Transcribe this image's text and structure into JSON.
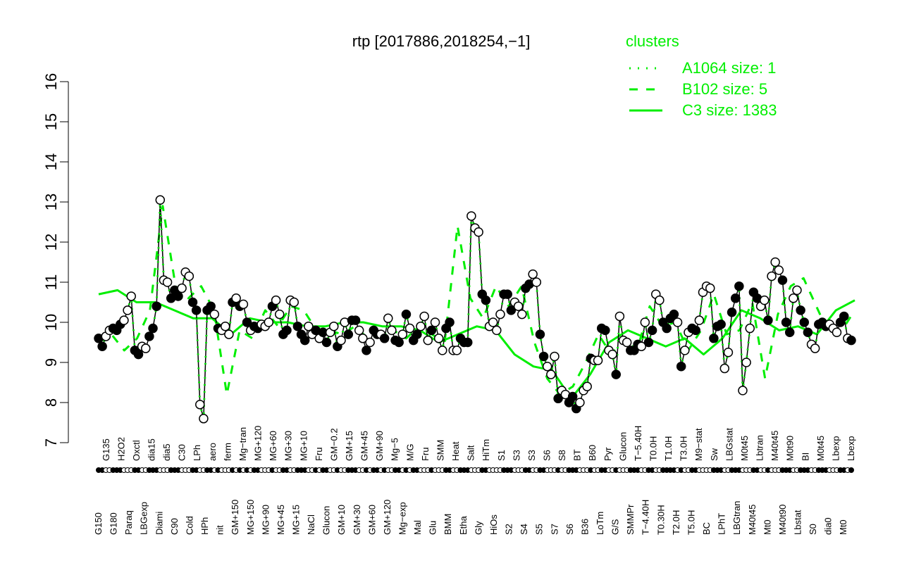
{
  "chart_data": {
    "type": "line",
    "title": "rtp [2017886,2018254,−1]",
    "xlabel": "",
    "ylabel": "",
    "ylim": [
      7,
      16
    ],
    "yticks": [
      "7",
      "8",
      "9",
      "10",
      "11",
      "12",
      "13",
      "14",
      "15",
      "16"
    ],
    "grid": false,
    "legend": {
      "title": "clusters",
      "placement": "top-right",
      "entries": [
        {
          "label": "A1064 size: 1",
          "style": "dotted"
        },
        {
          "label": "B102 size: 5",
          "style": "dashed"
        },
        {
          "label": "C3 size: 1383",
          "style": "solid"
        }
      ]
    },
    "colors": {
      "cluster_lines": "#00ee00",
      "points": "#000000",
      "title": "#000000"
    },
    "point_note_filled": "1 = filled circle, 0 = open circle",
    "points": [
      [
        9.6,
        1
      ],
      [
        9.4,
        1
      ],
      [
        9.65,
        0
      ],
      [
        9.8,
        0
      ],
      [
        9.85,
        1
      ],
      [
        9.8,
        1
      ],
      [
        9.95,
        1
      ],
      [
        10.05,
        0
      ],
      [
        10.3,
        0
      ],
      [
        10.65,
        0
      ],
      [
        9.3,
        1
      ],
      [
        9.2,
        1
      ],
      [
        9.4,
        0
      ],
      [
        9.35,
        0
      ],
      [
        9.65,
        1
      ],
      [
        9.85,
        1
      ],
      [
        10.4,
        1
      ],
      [
        13.05,
        0
      ],
      [
        11.05,
        0
      ],
      [
        11.0,
        0
      ],
      [
        10.6,
        1
      ],
      [
        10.8,
        1
      ],
      [
        10.65,
        1
      ],
      [
        10.85,
        0
      ],
      [
        11.25,
        0
      ],
      [
        11.15,
        0
      ],
      [
        10.5,
        1
      ],
      [
        10.3,
        1
      ],
      [
        7.95,
        0
      ],
      [
        7.6,
        0
      ],
      [
        10.3,
        1
      ],
      [
        10.4,
        1
      ],
      [
        10.2,
        0
      ],
      [
        9.85,
        1
      ],
      [
        9.8,
        0
      ],
      [
        9.9,
        0
      ],
      [
        9.7,
        0
      ],
      [
        10.5,
        1
      ],
      [
        10.6,
        0
      ],
      [
        10.4,
        1
      ],
      [
        10.45,
        0
      ],
      [
        10.0,
        1
      ],
      [
        9.8,
        0
      ],
      [
        9.9,
        1
      ],
      [
        9.85,
        1
      ],
      [
        9.95,
        0
      ],
      [
        9.9,
        0
      ],
      [
        10.0,
        0
      ],
      [
        10.4,
        1
      ],
      [
        10.55,
        0
      ],
      [
        10.2,
        0
      ],
      [
        9.7,
        1
      ],
      [
        9.8,
        1
      ],
      [
        10.55,
        0
      ],
      [
        10.5,
        0
      ],
      [
        9.9,
        1
      ],
      [
        9.7,
        1
      ],
      [
        9.55,
        1
      ],
      [
        9.9,
        0
      ],
      [
        9.7,
        0
      ],
      [
        9.8,
        1
      ],
      [
        9.6,
        0
      ],
      [
        9.75,
        1
      ],
      [
        9.5,
        1
      ],
      [
        9.75,
        0
      ],
      [
        9.9,
        0
      ],
      [
        9.4,
        1
      ],
      [
        9.55,
        0
      ],
      [
        10.0,
        0
      ],
      [
        9.7,
        1
      ],
      [
        10.05,
        1
      ],
      [
        10.05,
        1
      ],
      [
        9.8,
        0
      ],
      [
        9.6,
        0
      ],
      [
        9.3,
        1
      ],
      [
        9.5,
        0
      ],
      [
        9.8,
        1
      ],
      [
        9.7,
        1
      ],
      [
        9.7,
        0
      ],
      [
        9.6,
        1
      ],
      [
        10.1,
        0
      ],
      [
        9.8,
        0
      ],
      [
        9.55,
        1
      ],
      [
        9.5,
        1
      ],
      [
        9.7,
        0
      ],
      [
        10.2,
        1
      ],
      [
        9.85,
        0
      ],
      [
        9.55,
        1
      ],
      [
        9.7,
        1
      ],
      [
        9.9,
        0
      ],
      [
        10.15,
        0
      ],
      [
        9.55,
        0
      ],
      [
        9.8,
        1
      ],
      [
        10.0,
        0
      ],
      [
        9.6,
        0
      ],
      [
        9.3,
        0
      ],
      [
        9.85,
        1
      ],
      [
        10.0,
        1
      ],
      [
        9.3,
        0
      ],
      [
        9.3,
        0
      ],
      [
        9.6,
        1
      ],
      [
        9.5,
        1
      ],
      [
        9.5,
        1
      ],
      [
        12.65,
        0
      ],
      [
        12.35,
        0
      ],
      [
        12.25,
        0
      ],
      [
        10.7,
        1
      ],
      [
        10.55,
        1
      ],
      [
        9.9,
        0
      ],
      [
        10.0,
        0
      ],
      [
        9.8,
        0
      ],
      [
        10.2,
        0
      ],
      [
        10.7,
        1
      ],
      [
        10.7,
        1
      ],
      [
        10.3,
        1
      ],
      [
        10.5,
        0
      ],
      [
        10.4,
        0
      ],
      [
        10.2,
        0
      ],
      [
        10.85,
        1
      ],
      [
        10.95,
        1
      ],
      [
        11.2,
        0
      ],
      [
        11.0,
        0
      ],
      [
        9.7,
        1
      ],
      [
        9.15,
        1
      ],
      [
        8.9,
        0
      ],
      [
        8.7,
        0
      ],
      [
        9.15,
        0
      ],
      [
        8.1,
        1
      ],
      [
        8.3,
        0
      ],
      [
        8.2,
        0
      ],
      [
        8.0,
        1
      ],
      [
        8.15,
        1
      ],
      [
        7.85,
        1
      ],
      [
        8.0,
        0
      ],
      [
        8.3,
        0
      ],
      [
        8.4,
        0
      ],
      [
        9.1,
        1
      ],
      [
        9.05,
        0
      ],
      [
        9.05,
        0
      ],
      [
        9.85,
        1
      ],
      [
        9.8,
        1
      ],
      [
        9.3,
        0
      ],
      [
        9.2,
        0
      ],
      [
        8.7,
        1
      ],
      [
        10.15,
        0
      ],
      [
        9.55,
        0
      ],
      [
        9.5,
        0
      ],
      [
        9.3,
        1
      ],
      [
        9.3,
        1
      ],
      [
        9.45,
        1
      ],
      [
        9.4,
        0
      ],
      [
        10.0,
        0
      ],
      [
        9.5,
        1
      ],
      [
        9.8,
        1
      ],
      [
        10.7,
        0
      ],
      [
        10.55,
        0
      ],
      [
        10.0,
        1
      ],
      [
        9.85,
        1
      ],
      [
        10.1,
        1
      ],
      [
        10.2,
        1
      ],
      [
        10.0,
        0
      ],
      [
        8.9,
        1
      ],
      [
        9.3,
        0
      ],
      [
        9.75,
        0
      ],
      [
        9.85,
        1
      ],
      [
        9.8,
        1
      ],
      [
        10.05,
        0
      ],
      [
        10.75,
        0
      ],
      [
        10.9,
        0
      ],
      [
        10.85,
        0
      ],
      [
        9.6,
        1
      ],
      [
        9.9,
        1
      ],
      [
        9.95,
        1
      ],
      [
        8.85,
        0
      ],
      [
        9.25,
        0
      ],
      [
        10.25,
        1
      ],
      [
        10.6,
        1
      ],
      [
        10.9,
        1
      ],
      [
        8.3,
        0
      ],
      [
        9.0,
        0
      ],
      [
        9.85,
        0
      ],
      [
        10.75,
        1
      ],
      [
        10.6,
        1
      ],
      [
        10.4,
        0
      ],
      [
        10.55,
        0
      ],
      [
        10.05,
        1
      ],
      [
        11.15,
        0
      ],
      [
        11.5,
        0
      ],
      [
        11.3,
        0
      ],
      [
        11.05,
        1
      ],
      [
        10.0,
        1
      ],
      [
        9.75,
        1
      ],
      [
        10.6,
        0
      ],
      [
        10.8,
        0
      ],
      [
        10.3,
        1
      ],
      [
        10.0,
        1
      ],
      [
        9.75,
        1
      ],
      [
        9.45,
        0
      ],
      [
        9.35,
        0
      ],
      [
        9.95,
        1
      ],
      [
        10.0,
        1
      ],
      [
        9.9,
        1
      ],
      [
        9.95,
        0
      ],
      [
        9.85,
        0
      ],
      [
        9.75,
        0
      ],
      [
        10.0,
        1
      ],
      [
        10.15,
        1
      ],
      [
        9.6,
        0
      ],
      [
        9.55,
        1
      ]
    ],
    "series": [
      {
        "name": "C3 size: 1383",
        "style": "solid",
        "values": [
          10.7,
          10.8,
          10.5,
          10.5,
          10.3,
          10.1,
          10.1,
          9.7,
          10.1,
          10.0,
          10.0,
          9.9,
          9.9,
          10.0,
          10.0,
          9.9,
          9.9,
          9.8,
          9.5,
          9.7,
          9.9,
          9.8,
          9.2,
          8.9,
          8.8,
          8.1,
          8.7,
          9.5,
          9.8,
          9.6,
          9.4,
          9.6,
          9.2,
          9.6,
          10.3,
          10.1,
          9.8,
          9.9,
          9.7,
          10.3,
          10.55
        ]
      },
      {
        "name": "B102 size: 5",
        "style": "dashed",
        "values": [
          9.5,
          9.7,
          9.3,
          9.6,
          10.3,
          12.9,
          10.9,
          10.6,
          10.9,
          10.3,
          8.2,
          9.8,
          9.6,
          10.3,
          9.9,
          10.4,
          10.3,
          9.8,
          9.8,
          9.7,
          9.9,
          9.6,
          9.7,
          9.8,
          9.6,
          9.9,
          9.7,
          9.5,
          12.4,
          10.6,
          10.1,
          10.9,
          10.4,
          10.9,
          9.5,
          8.6,
          8.2,
          8.4,
          9.0,
          9.7,
          9.2,
          9.6,
          9.3,
          10.4,
          9.9,
          10.0,
          9.3,
          9.8,
          10.7,
          9.7,
          9.8,
          10.5,
          8.6,
          10.2,
          10.9,
          11.1,
          10.4,
          9.7,
          9.8,
          10.3
        ]
      }
    ],
    "x_tick_labels": [
      "G150",
      "G135",
      "G180",
      "H2O2",
      "Paraq",
      "Oxctl",
      "LBGexp",
      "dia15",
      "Diami",
      "dia5",
      "C90",
      "C30",
      "Cold",
      "LPh",
      "HPh",
      "aero",
      "nit",
      "ferm",
      "GM+150",
      "Mg−tran",
      "MG+150",
      "MG+120",
      "MG+90",
      "MG+60",
      "MG+45",
      "MG+30",
      "MG+15",
      "MG+10",
      "NaCl",
      "Fru",
      "Glucon",
      "GM−0.2",
      "GM+10",
      "GM+15",
      "GM+30",
      "GM+45",
      "GM+60",
      "GM+90",
      "GM+120",
      "Mg−5",
      "Mg−exp",
      "M/G",
      "Mal",
      "Fru",
      "Glu",
      "SMM",
      "BMM",
      "Heat",
      "Etha",
      "Salt",
      "Gly",
      "HiTm",
      "HiOs",
      "S1",
      "S2",
      "S3",
      "S4",
      "S3",
      "S5",
      "S6",
      "S7",
      "S8",
      "S6",
      "BT",
      "B36",
      "B60",
      "LoTm",
      "Pyr",
      "G/S",
      "Glucon",
      "SMMPr",
      "T−5.40H",
      "T−4.40H",
      "T0.0H",
      "T0.30H",
      "T1.0H",
      "T2.0H",
      "T3.0H",
      "T5.0H",
      "M9−stat",
      "BC",
      "Sw",
      "LPhT",
      "LBGstat",
      "LBGtran",
      "M0t45",
      "M40t45",
      "Lbtran",
      "Mt0",
      "M40t45",
      "M40t90",
      "M0t90",
      "Lbstat",
      "BI",
      "S0",
      "M0t45",
      "dia0",
      "Lbexp",
      "Mt0",
      "Lbexp"
    ]
  }
}
